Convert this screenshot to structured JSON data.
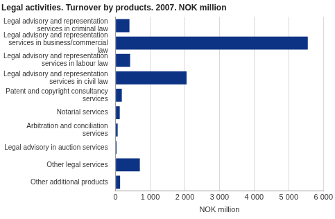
{
  "chart_data": {
    "type": "bar",
    "orientation": "horizontal",
    "title": "Legal activities. Turnover by products. 2007. NOK million",
    "x_label": "NOK million",
    "categories": [
      "Legal advisory and representation services in criminal law",
      "Legal advisory and representation services in business/commercial law",
      "Legal advisory and representation services in labour law",
      "Legal advisory and representation services in civil law",
      "Patent and copyright consultancy services",
      "Notarial services",
      "Arbitration and conciliation services",
      "Legal advisory in auction services",
      "Other legal services",
      "Other additional products"
    ],
    "values": [
      400,
      5550,
      420,
      2050,
      180,
      120,
      60,
      30,
      700,
      130
    ],
    "color": "#0d3384",
    "xlim": [
      0,
      6000
    ],
    "xticks": [
      0,
      {
        "value": 1000,
        "label": "1 000"
      },
      {
        "value": 2000,
        "label": "2 000"
      },
      {
        "value": 3000,
        "label": "3 000"
      },
      {
        "value": 4000,
        "label": "4 000"
      },
      {
        "value": 5000,
        "label": "5 000"
      },
      {
        "value": 6000,
        "label": "6 000"
      }
    ],
    "grid": true
  }
}
